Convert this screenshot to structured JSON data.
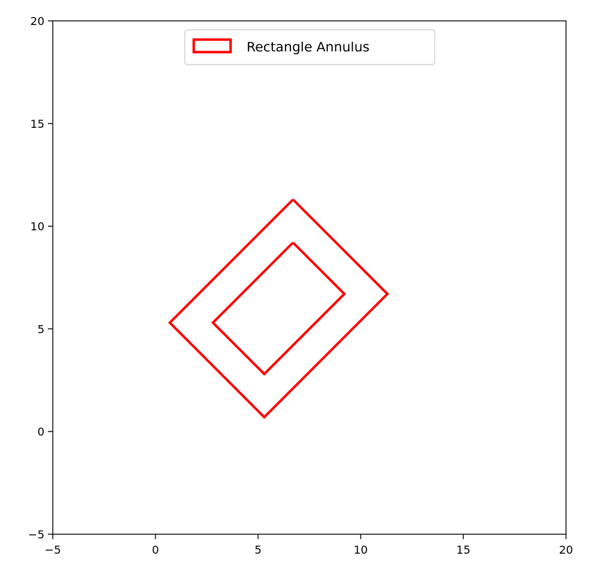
{
  "chart_data": {
    "type": "line",
    "title": "",
    "xlabel": "",
    "ylabel": "",
    "xlim": [
      -5,
      20
    ],
    "ylim": [
      -5,
      20
    ],
    "xticks": [
      -5,
      0,
      5,
      10,
      15,
      20
    ],
    "yticks": [
      -5,
      0,
      5,
      10,
      15,
      20
    ],
    "xtick_labels": [
      "−5",
      "0",
      "5",
      "10",
      "15",
      "20"
    ],
    "ytick_labels": [
      "−5",
      "0",
      "5",
      "10",
      "15",
      "20"
    ],
    "grid": false,
    "legend": {
      "position": "upper center",
      "entries": [
        "Rectangle Annulus"
      ]
    },
    "series": [
      {
        "name": "Rectangle Annulus",
        "color": "#ff0000",
        "outer": [
          [
            6.7,
            11.3
          ],
          [
            11.3,
            6.7
          ],
          [
            5.3,
            0.7
          ],
          [
            0.7,
            5.3
          ],
          [
            6.7,
            11.3
          ]
        ],
        "inner": [
          [
            6.7,
            9.2
          ],
          [
            9.2,
            6.7
          ],
          [
            5.3,
            2.8
          ],
          [
            2.8,
            5.3
          ],
          [
            6.7,
            9.2
          ]
        ]
      }
    ]
  }
}
